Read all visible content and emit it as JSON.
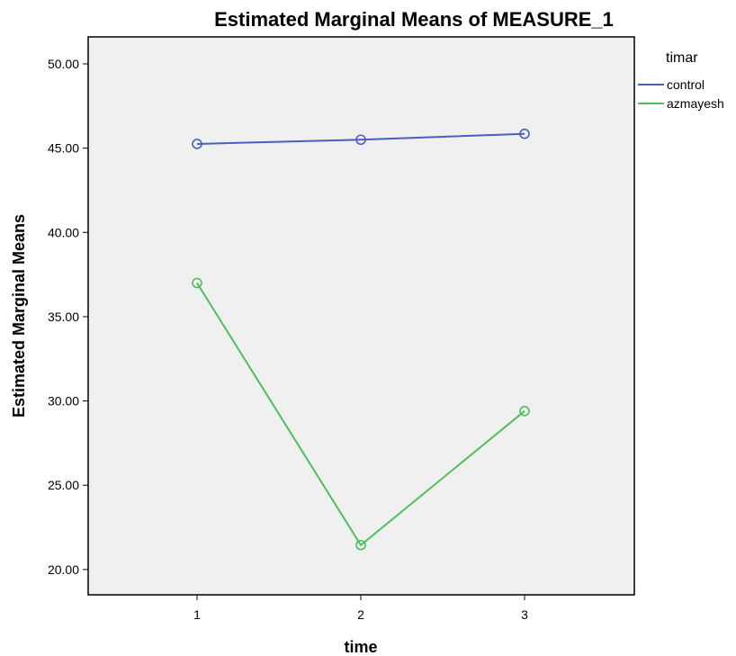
{
  "chart_data": {
    "type": "line",
    "title": "Estimated Marginal Means of MEASURE_1",
    "xlabel": "time",
    "ylabel": "Estimated Marginal Means",
    "categories": [
      "1",
      "2",
      "3"
    ],
    "ylim": [
      18.5,
      51.6
    ],
    "yticks": [
      20,
      25,
      30,
      35,
      40,
      45,
      50
    ],
    "ytick_labels": [
      "20.00",
      "25.00",
      "30.00",
      "35.00",
      "40.00",
      "45.00",
      "50.00"
    ],
    "legend_title": "timar",
    "legend_position": "right",
    "plot_background": "#f0f0f0",
    "grid": false,
    "series": [
      {
        "name": "control",
        "color": "#4a5fc1",
        "values": [
          45.25,
          45.5,
          45.85
        ]
      },
      {
        "name": "azmayesh",
        "color": "#4cbf5a",
        "values": [
          37.0,
          21.45,
          29.4
        ]
      }
    ]
  }
}
